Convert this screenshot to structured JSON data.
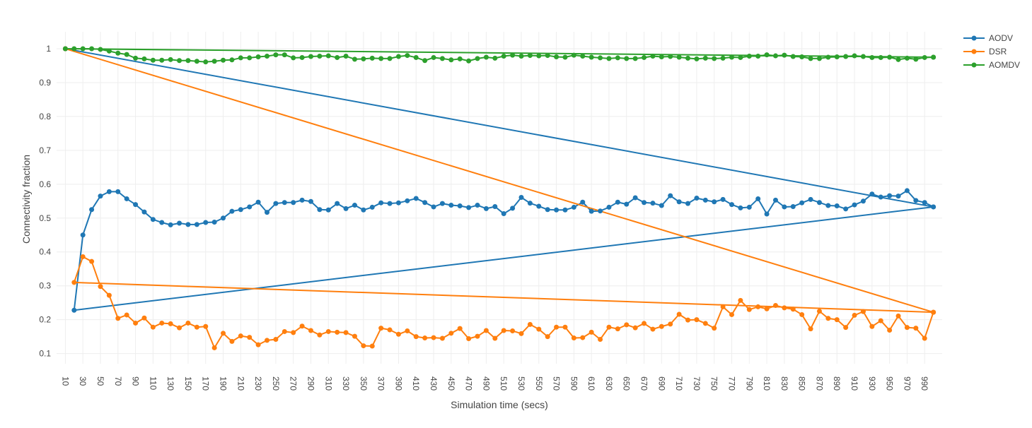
{
  "chart_data": {
    "type": "line",
    "xlabel": "Simulation time (secs)",
    "ylabel": "Connectivity fraction",
    "xlim": [
      0,
      1010
    ],
    "ylim": [
      0.07,
      1.05
    ],
    "x_tick_values": [
      10,
      30,
      50,
      70,
      90,
      110,
      130,
      150,
      170,
      190,
      210,
      230,
      250,
      270,
      290,
      310,
      330,
      350,
      370,
      390,
      410,
      430,
      450,
      470,
      490,
      510,
      530,
      550,
      570,
      590,
      610,
      630,
      650,
      670,
      690,
      710,
      730,
      750,
      770,
      790,
      810,
      830,
      850,
      870,
      890,
      910,
      930,
      950,
      970,
      990
    ],
    "x_tick_labels": [
      "10",
      "30",
      "50",
      "70",
      "90",
      "110",
      "130",
      "150",
      "170",
      "190",
      "210",
      "230",
      "250",
      "270",
      "290",
      "310",
      "330",
      "350",
      "370",
      "390",
      "410",
      "430",
      "450",
      "470",
      "490",
      "510",
      "530",
      "550",
      "570",
      "590",
      "610",
      "630",
      "650",
      "670",
      "690",
      "710",
      "730",
      "750",
      "770",
      "790",
      "810",
      "830",
      "850",
      "870",
      "890",
      "910",
      "930",
      "950",
      "970",
      "990"
    ],
    "y_tick_values": [
      0.1,
      0.2,
      0.3,
      0.4,
      0.5,
      0.6,
      0.7,
      0.8,
      0.9,
      1
    ],
    "y_tick_labels": [
      "0.1",
      "0.2",
      "0.3",
      "0.4",
      "0.5",
      "0.6",
      "0.7",
      "0.8",
      "0.9",
      "1"
    ],
    "grid": true,
    "legend_position": "top-right",
    "x": [
      10,
      1000,
      20,
      30,
      40,
      50,
      60,
      70,
      80,
      90,
      100,
      110,
      120,
      130,
      140,
      150,
      160,
      170,
      180,
      190,
      200,
      210,
      220,
      230,
      240,
      250,
      260,
      270,
      280,
      290,
      300,
      310,
      320,
      330,
      340,
      350,
      360,
      370,
      380,
      390,
      400,
      410,
      420,
      430,
      440,
      450,
      460,
      470,
      480,
      490,
      500,
      510,
      520,
      530,
      540,
      550,
      560,
      570,
      580,
      590,
      600,
      610,
      620,
      630,
      640,
      650,
      660,
      670,
      680,
      690,
      700,
      710,
      720,
      730,
      740,
      750,
      760,
      770,
      780,
      790,
      800,
      810,
      820,
      830,
      840,
      850,
      860,
      870,
      880,
      890,
      900,
      910,
      920,
      930,
      940,
      950,
      960,
      970,
      980,
      990,
      1000
    ],
    "series": [
      {
        "name": "AODV",
        "color": "#1f77b4",
        "values": [
          1,
          0.533,
          0.228,
          0.45,
          0.525,
          0.565,
          0.578,
          0.578,
          0.557,
          0.54,
          0.518,
          0.496,
          0.487,
          0.48,
          0.485,
          0.481,
          0.481,
          0.487,
          0.488,
          0.5,
          0.52,
          0.525,
          0.533,
          0.547,
          0.517,
          0.543,
          0.546,
          0.546,
          0.553,
          0.549,
          0.525,
          0.524,
          0.543,
          0.528,
          0.538,
          0.524,
          0.532,
          0.545,
          0.543,
          0.545,
          0.551,
          0.558,
          0.546,
          0.533,
          0.543,
          0.538,
          0.536,
          0.531,
          0.538,
          0.528,
          0.534,
          0.513,
          0.529,
          0.561,
          0.544,
          0.535,
          0.525,
          0.524,
          0.524,
          0.532,
          0.547,
          0.52,
          0.521,
          0.532,
          0.547,
          0.541,
          0.56,
          0.546,
          0.544,
          0.537,
          0.566,
          0.548,
          0.543,
          0.559,
          0.553,
          0.548,
          0.555,
          0.54,
          0.53,
          0.532,
          0.557,
          0.512,
          0.553,
          0.533,
          0.534,
          0.545,
          0.555,
          0.546,
          0.537,
          0.536,
          0.527,
          0.539,
          0.55,
          0.571,
          0.562,
          0.566,
          0.565,
          0.581,
          0.552,
          0.546,
          0.533
        ]
      },
      {
        "name": "DSR",
        "color": "#ff7f0e",
        "values": [
          1,
          0.222,
          0.31,
          0.386,
          0.372,
          0.298,
          0.272,
          0.204,
          0.214,
          0.19,
          0.205,
          0.178,
          0.19,
          0.188,
          0.176,
          0.19,
          0.178,
          0.18,
          0.117,
          0.16,
          0.136,
          0.152,
          0.148,
          0.126,
          0.139,
          0.142,
          0.165,
          0.162,
          0.181,
          0.168,
          0.155,
          0.165,
          0.163,
          0.162,
          0.151,
          0.123,
          0.122,
          0.175,
          0.17,
          0.157,
          0.167,
          0.15,
          0.146,
          0.147,
          0.145,
          0.16,
          0.174,
          0.144,
          0.151,
          0.168,
          0.145,
          0.168,
          0.167,
          0.159,
          0.186,
          0.172,
          0.15,
          0.178,
          0.178,
          0.146,
          0.147,
          0.163,
          0.142,
          0.178,
          0.173,
          0.185,
          0.176,
          0.189,
          0.172,
          0.18,
          0.187,
          0.216,
          0.199,
          0.2,
          0.189,
          0.175,
          0.238,
          0.215,
          0.257,
          0.23,
          0.238,
          0.232,
          0.242,
          0.235,
          0.231,
          0.215,
          0.173,
          0.225,
          0.204,
          0.2,
          0.177,
          0.213,
          0.224,
          0.18,
          0.197,
          0.169,
          0.211,
          0.177,
          0.175,
          0.145,
          0.222
        ]
      },
      {
        "name": "AOMDV",
        "color": "#2ca02c",
        "values": [
          1,
          0.975,
          1,
          1,
          1,
          0.998,
          0.993,
          0.987,
          0.983,
          0.972,
          0.97,
          0.966,
          0.966,
          0.968,
          0.965,
          0.965,
          0.963,
          0.961,
          0.963,
          0.966,
          0.967,
          0.973,
          0.973,
          0.976,
          0.978,
          0.982,
          0.982,
          0.973,
          0.974,
          0.977,
          0.978,
          0.979,
          0.974,
          0.978,
          0.969,
          0.97,
          0.972,
          0.971,
          0.971,
          0.977,
          0.98,
          0.974,
          0.965,
          0.974,
          0.971,
          0.967,
          0.97,
          0.964,
          0.971,
          0.975,
          0.972,
          0.978,
          0.981,
          0.978,
          0.98,
          0.979,
          0.98,
          0.976,
          0.975,
          0.981,
          0.978,
          0.975,
          0.973,
          0.971,
          0.973,
          0.971,
          0.971,
          0.974,
          0.978,
          0.976,
          0.977,
          0.975,
          0.972,
          0.97,
          0.972,
          0.971,
          0.972,
          0.975,
          0.974,
          0.978,
          0.978,
          0.982,
          0.979,
          0.981,
          0.977,
          0.976,
          0.971,
          0.971,
          0.975,
          0.976,
          0.977,
          0.979,
          0.977,
          0.974,
          0.974,
          0.975,
          0.968,
          0.972,
          0.969,
          0.974,
          0.975
        ]
      }
    ]
  }
}
